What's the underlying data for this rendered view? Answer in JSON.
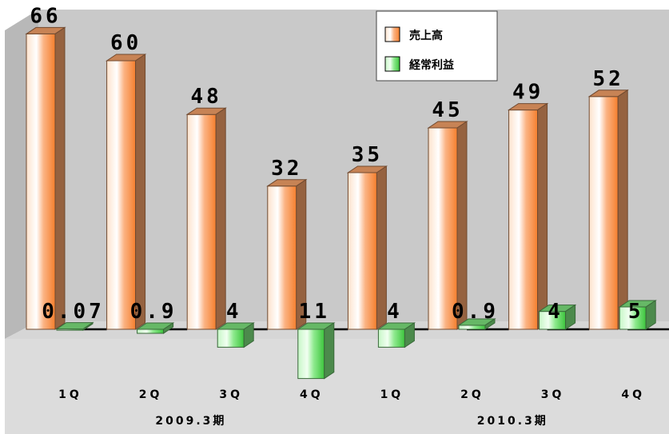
{
  "chart_data": {
    "type": "bar",
    "categories": [
      "1Q",
      "2Q",
      "3Q",
      "4Q",
      "1Q",
      "2Q",
      "3Q",
      "4Q"
    ],
    "category_groups": [
      {
        "label": "2009.3期",
        "span": [
          0,
          3
        ]
      },
      {
        "label": "2010.3期",
        "span": [
          4,
          7
        ]
      }
    ],
    "series": [
      {
        "name": "売上高",
        "values": [
          66,
          60,
          48,
          32,
          35,
          45,
          49,
          52
        ],
        "labels": [
          "66",
          "60",
          "48",
          "32",
          "35",
          "45",
          "49",
          "52"
        ],
        "color": "#f9a46a"
      },
      {
        "name": "経常利益",
        "values": [
          0.07,
          -0.9,
          -4,
          -11,
          -4,
          0.9,
          4,
          5
        ],
        "labels": [
          "0.07",
          "0.9",
          "4",
          "11",
          "4",
          "0.9",
          "4",
          "5"
        ],
        "color": "#7fe67f"
      }
    ],
    "legend_position": "top-right",
    "grid": false,
    "style": "3d"
  }
}
